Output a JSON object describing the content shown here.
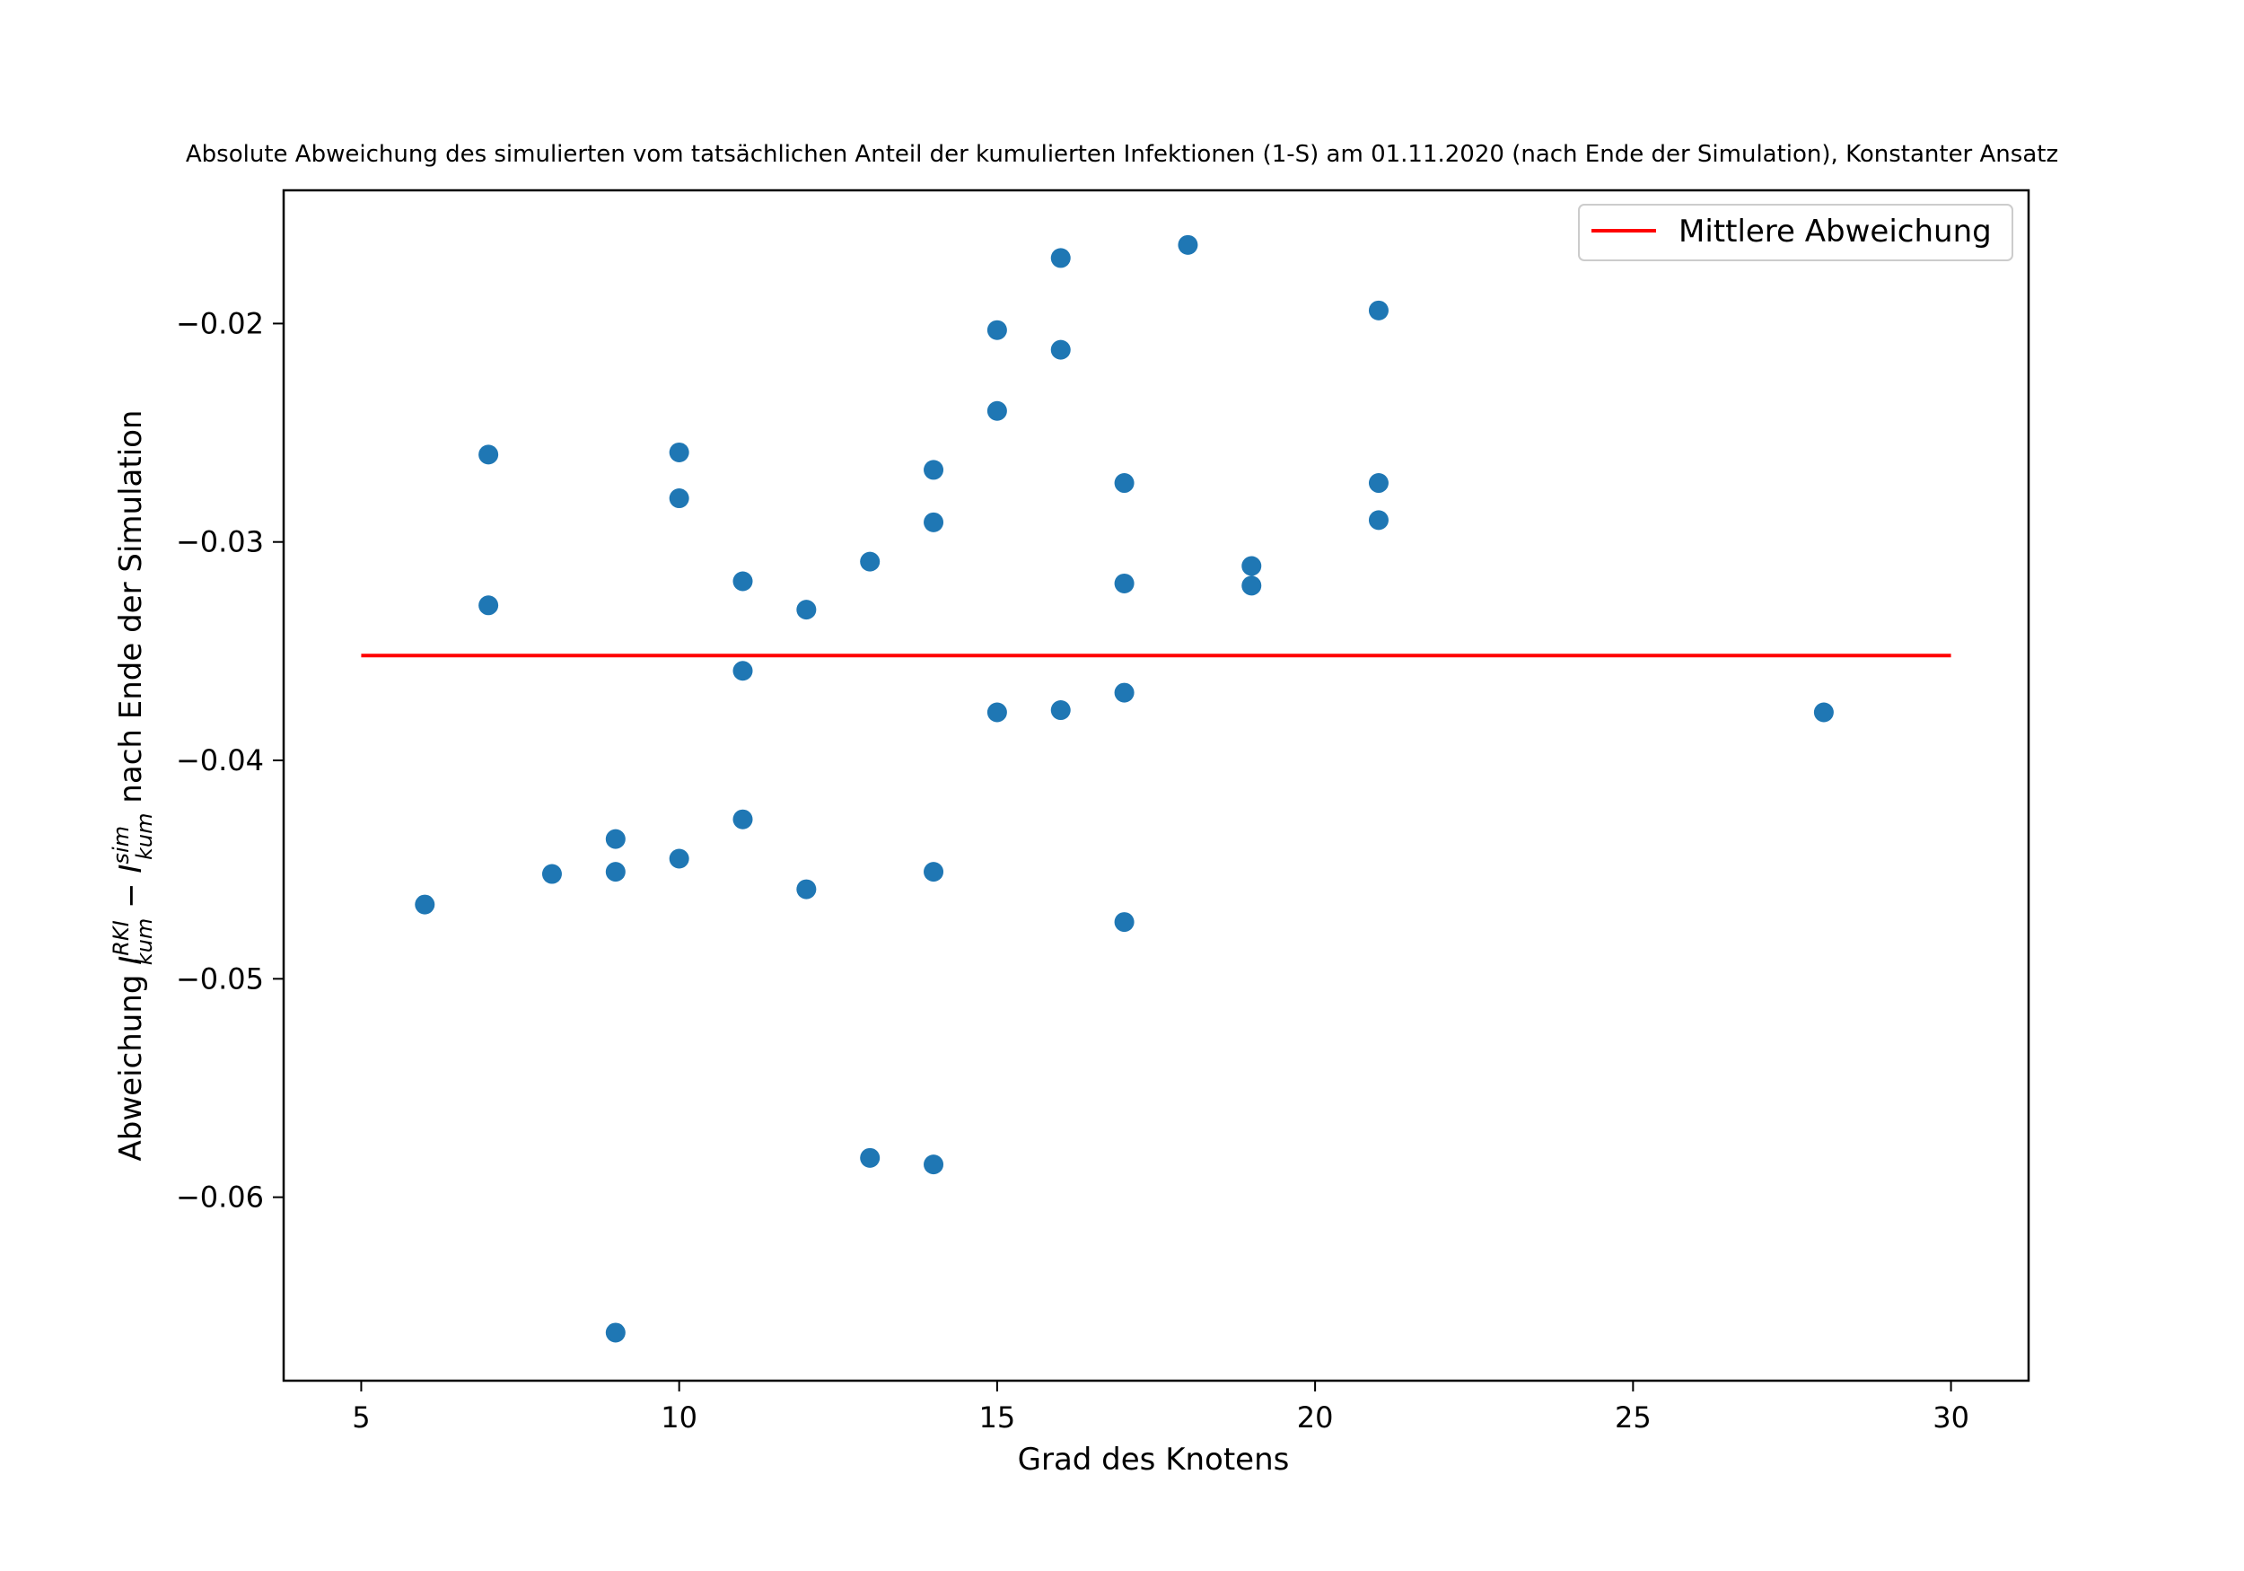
{
  "chart_data": {
    "type": "scatter",
    "title": "Absolute Abweichung des simulierten vom tatsächlichen Anteil der kumulierten Infektionen (1-S) am 01.11.2020 (nach Ende der Simulation), Konstanter Ansatz",
    "xlabel": "Grad des Knotens",
    "ylabel": {
      "prefix": "Abweichung ",
      "term1": "I",
      "term1_sup": "RKI",
      "term1_sub": "kum",
      "minus": " − ",
      "term2": "I",
      "term2_sup": "sim",
      "term2_sub": "kum",
      "suffix": " nach Ende der Simulation"
    },
    "xlim": [
      3.78,
      31.22
    ],
    "ylim": [
      -0.0684,
      -0.0139
    ],
    "xticks": [
      {
        "value": 5,
        "label": "5"
      },
      {
        "value": 10,
        "label": "10"
      },
      {
        "value": 15,
        "label": "15"
      },
      {
        "value": 20,
        "label": "20"
      },
      {
        "value": 25,
        "label": "25"
      },
      {
        "value": 30,
        "label": "30"
      }
    ],
    "yticks": [
      {
        "value": -0.02,
        "label": "−0.02"
      },
      {
        "value": -0.03,
        "label": "−0.03"
      },
      {
        "value": -0.04,
        "label": "−0.04"
      },
      {
        "value": -0.05,
        "label": "−0.05"
      },
      {
        "value": -0.06,
        "label": "−0.06"
      }
    ],
    "grid": false,
    "legend": {
      "placement": "top-right",
      "entries": [
        "Mittlere Abweichung"
      ]
    },
    "series": [
      {
        "kind": "scatter",
        "color": "#1f77b4",
        "points": [
          {
            "x": 6,
            "y": -0.0466
          },
          {
            "x": 7,
            "y": -0.026
          },
          {
            "x": 7,
            "y": -0.0329
          },
          {
            "x": 8,
            "y": -0.0452
          },
          {
            "x": 9,
            "y": -0.0436
          },
          {
            "x": 9,
            "y": -0.0451
          },
          {
            "x": 9,
            "y": -0.0662
          },
          {
            "x": 10,
            "y": -0.0259
          },
          {
            "x": 10,
            "y": -0.028
          },
          {
            "x": 10,
            "y": -0.0445
          },
          {
            "x": 11,
            "y": -0.0318
          },
          {
            "x": 11,
            "y": -0.0359
          },
          {
            "x": 11,
            "y": -0.0427
          },
          {
            "x": 12,
            "y": -0.0331
          },
          {
            "x": 12,
            "y": -0.0459
          },
          {
            "x": 13,
            "y": -0.0309
          },
          {
            "x": 13,
            "y": -0.0582
          },
          {
            "x": 14,
            "y": -0.0267
          },
          {
            "x": 14,
            "y": -0.0291
          },
          {
            "x": 14,
            "y": -0.0451
          },
          {
            "x": 14,
            "y": -0.0585
          },
          {
            "x": 15,
            "y": -0.0203
          },
          {
            "x": 15,
            "y": -0.024
          },
          {
            "x": 15,
            "y": -0.0378
          },
          {
            "x": 16,
            "y": -0.017
          },
          {
            "x": 16,
            "y": -0.0212
          },
          {
            "x": 16,
            "y": -0.0377
          },
          {
            "x": 17,
            "y": -0.0273
          },
          {
            "x": 17,
            "y": -0.0319
          },
          {
            "x": 17,
            "y": -0.0369
          },
          {
            "x": 17,
            "y": -0.0474
          },
          {
            "x": 18,
            "y": -0.0164
          },
          {
            "x": 19,
            "y": -0.0311
          },
          {
            "x": 19,
            "y": -0.032
          },
          {
            "x": 21,
            "y": -0.0194
          },
          {
            "x": 21,
            "y": -0.0273
          },
          {
            "x": 21,
            "y": -0.029
          },
          {
            "x": 28,
            "y": -0.0378
          }
        ]
      },
      {
        "kind": "line",
        "name": "Mittlere Abweichung",
        "color": "#ff0000",
        "points": [
          {
            "x": 5,
            "y": -0.0352
          },
          {
            "x": 30,
            "y": -0.0352
          }
        ]
      }
    ]
  }
}
